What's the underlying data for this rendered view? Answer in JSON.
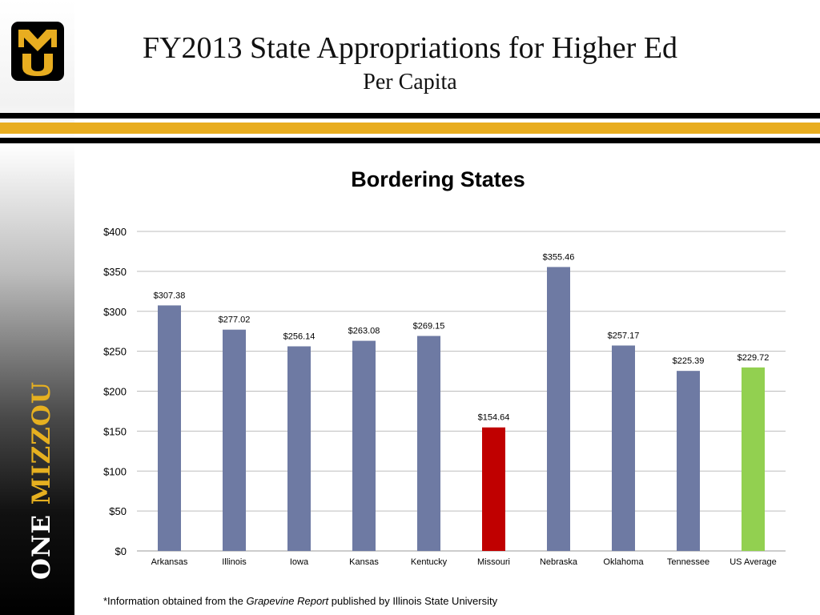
{
  "slide": {
    "title": "FY2013 State Appropriations for Higher Ed",
    "subtitle": "Per Capita"
  },
  "logo": {
    "text": "MU",
    "trademark": "™"
  },
  "brand": {
    "word1": "ONE",
    "word2": "MIZZOU"
  },
  "colors": {
    "gold": "#e8ad20",
    "bar_default": "#6e7aa3",
    "bar_missouri": "#c00000",
    "bar_average": "#92d050"
  },
  "chart_data": {
    "type": "bar",
    "title": "Bordering States",
    "categories": [
      "Arkansas",
      "Illinois",
      "Iowa",
      "Kansas",
      "Kentucky",
      "Missouri",
      "Nebraska",
      "Oklahoma",
      "Tennessee",
      "US Average"
    ],
    "values": [
      307.38,
      277.02,
      256.14,
      263.08,
      269.15,
      154.64,
      355.46,
      257.17,
      225.39,
      229.72
    ],
    "data_labels": [
      "$307.38",
      "$277.02",
      "$256.14",
      "$263.08",
      "$269.15",
      "$154.64",
      "$355.46",
      "$257.17",
      "$225.39",
      "$229.72"
    ],
    "bar_colors": [
      "#6e7aa3",
      "#6e7aa3",
      "#6e7aa3",
      "#6e7aa3",
      "#6e7aa3",
      "#c00000",
      "#6e7aa3",
      "#6e7aa3",
      "#6e7aa3",
      "#92d050"
    ],
    "y_ticks": [
      0,
      50,
      100,
      150,
      200,
      250,
      300,
      350,
      400
    ],
    "y_tick_labels": [
      "$0",
      "$50",
      "$100",
      "$150",
      "$200",
      "$250",
      "$300",
      "$350",
      "$400"
    ],
    "ylim": [
      0,
      400
    ],
    "grid": true,
    "legend": "none"
  },
  "footnote": {
    "prefix": "*Information obtained from the ",
    "italic": "Grapevine Report",
    "suffix": " published by Illinois State University"
  }
}
